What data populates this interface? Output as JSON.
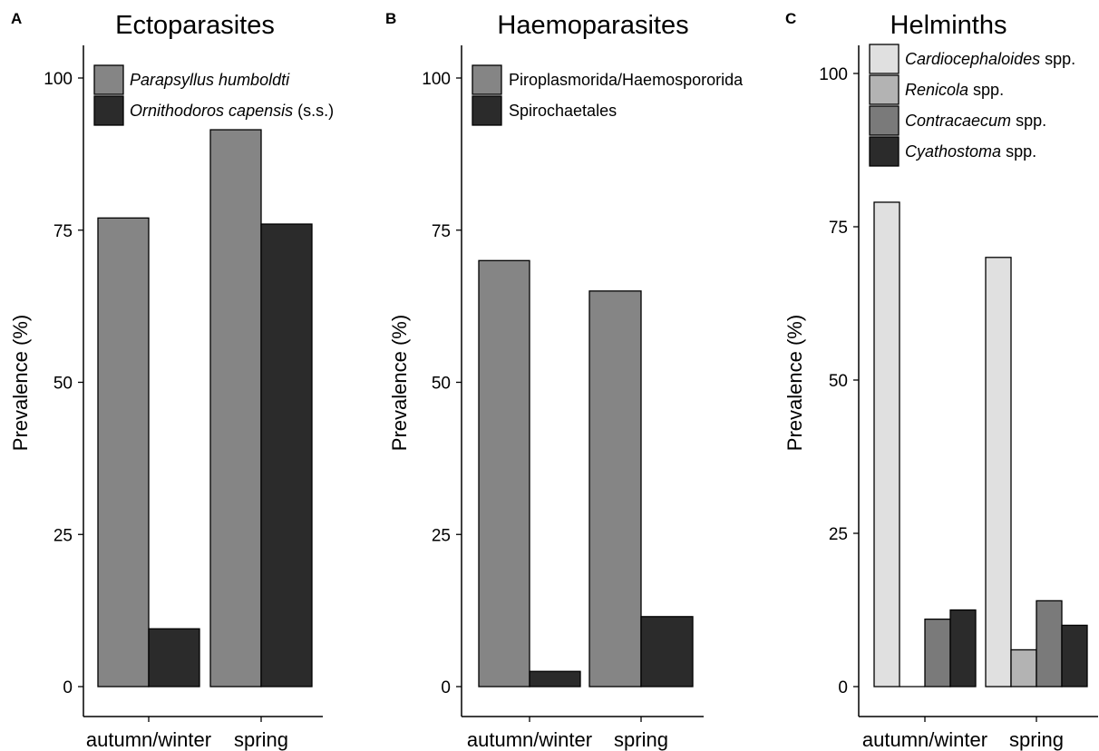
{
  "chart_data": [
    {
      "panel": "A",
      "type": "bar",
      "title": "Ectoparasites",
      "ylabel": "Prevalence (%)",
      "ylim": [
        0,
        100
      ],
      "yticks": [
        0,
        25,
        50,
        75,
        100
      ],
      "categories": [
        "autumn/winter",
        "spring"
      ],
      "series": [
        {
          "name": "Parapsyllus humboldti",
          "name_suffix": "",
          "italic": true,
          "color": "#858585",
          "values": [
            77,
            91.5
          ]
        },
        {
          "name": "Ornithodoros capensis",
          "name_suffix": " (s.s.)",
          "italic": true,
          "color": "#2b2b2b",
          "values": [
            9.5,
            76
          ]
        }
      ],
      "legend_position": "top-left"
    },
    {
      "panel": "B",
      "type": "bar",
      "title": "Haemoparasites",
      "ylabel": "Prevalence (%)",
      "ylim": [
        0,
        100
      ],
      "yticks": [
        0,
        25,
        50,
        75,
        100
      ],
      "categories": [
        "autumn/winter",
        "spring"
      ],
      "series": [
        {
          "name": "Piroplasmorida/Haemospororida",
          "name_suffix": "",
          "italic": false,
          "color": "#858585",
          "values": [
            70,
            65
          ]
        },
        {
          "name": "Spirochaetales",
          "name_suffix": "",
          "italic": false,
          "color": "#2b2b2b",
          "values": [
            2.5,
            11.5
          ]
        }
      ],
      "legend_position": "top-left"
    },
    {
      "panel": "C",
      "type": "bar",
      "title": "Helminths",
      "ylabel": "Prevalence (%)",
      "ylim": [
        0,
        100
      ],
      "yticks": [
        0,
        25,
        50,
        75,
        100
      ],
      "categories": [
        "autumn/winter",
        "spring"
      ],
      "series": [
        {
          "name": "Cardiocephaloides",
          "name_suffix": " spp.",
          "italic": true,
          "color": "#e0e0e0",
          "values": [
            79,
            70
          ]
        },
        {
          "name": "Renicola",
          "name_suffix": " spp.",
          "italic": true,
          "color": "#b3b3b3",
          "values": [
            0,
            6
          ]
        },
        {
          "name": "Contracaecum",
          "name_suffix": " spp.",
          "italic": true,
          "color": "#7a7a7a",
          "values": [
            11,
            14
          ]
        },
        {
          "name": "Cyathostoma",
          "name_suffix": " spp.",
          "italic": true,
          "color": "#2b2b2b",
          "values": [
            12.5,
            10
          ]
        }
      ],
      "legend_position": "top-left"
    }
  ]
}
